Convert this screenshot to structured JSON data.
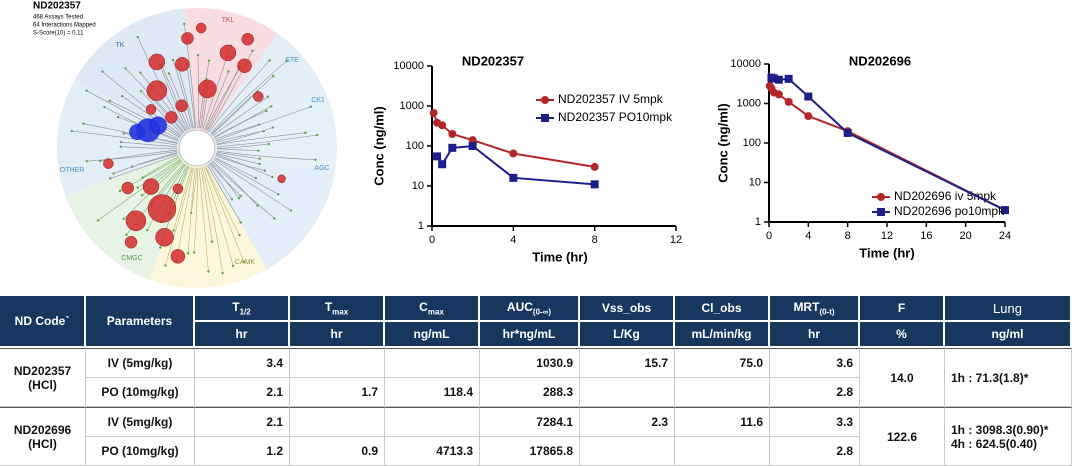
{
  "kinome": {
    "title": "ND202357",
    "stats": [
      "468 Assays Tested",
      "64 Interactions Mapped",
      "S-Score(10) = 0.11"
    ],
    "groups": [
      "TK",
      "TKL",
      "STE",
      "CK1",
      "AGC",
      "CAMK",
      "CMGC",
      "OTHER"
    ]
  },
  "chart_data": [
    {
      "type": "line",
      "title": "ND202357",
      "x_label": "Time (hr)",
      "y_label": "Conc (ng/ml)",
      "y_log": true,
      "xlim": [
        0,
        12
      ],
      "xticks": [
        0,
        4,
        8,
        12
      ],
      "ylim": [
        1,
        10000
      ],
      "yticks": [
        1,
        10,
        100,
        1000,
        10000
      ],
      "legend": "upper right",
      "series": [
        {
          "name": "ND202357 IV 5mpk",
          "color": "#b5262b",
          "marker": "circle",
          "x": [
            0.083,
            0.25,
            0.5,
            1,
            2,
            4,
            8
          ],
          "values": [
            670,
            380,
            330,
            200,
            140,
            65,
            30
          ]
        },
        {
          "name": "ND202357 PO10mpk",
          "color": "#1c1f8a",
          "marker": "square",
          "x": [
            0.25,
            0.5,
            1,
            2,
            4,
            8
          ],
          "values": [
            55,
            35,
            90,
            100,
            16,
            11
          ]
        }
      ]
    },
    {
      "type": "line",
      "title": "ND202696",
      "x_label": "Time (hr)",
      "y_label": "Conc (ng/ml)",
      "y_log": true,
      "xlim": [
        0,
        24
      ],
      "xticks": [
        0,
        4,
        8,
        12,
        16,
        20,
        24
      ],
      "ylim": [
        1,
        10000
      ],
      "yticks": [
        1,
        10,
        100,
        1000,
        10000
      ],
      "legend": "lower right",
      "series": [
        {
          "name": "ND202696 iv 5mpk",
          "color": "#b5262b",
          "marker": "circle",
          "x": [
            0.083,
            0.25,
            0.5,
            1,
            2,
            4,
            8,
            24
          ],
          "values": [
            2800,
            2400,
            1900,
            1700,
            1100,
            480,
            200,
            2
          ]
        },
        {
          "name": "ND202696 po10mpk",
          "color": "#1c1f8a",
          "marker": "square",
          "x": [
            0.25,
            0.5,
            1,
            2,
            4,
            8,
            24
          ],
          "values": [
            4500,
            4300,
            4000,
            4200,
            1500,
            180,
            2
          ]
        }
      ]
    }
  ],
  "table": {
    "headers": [
      {
        "text": "ND Code`"
      },
      {
        "text": "Parameters"
      },
      {
        "text": "T",
        "sub": "1/2"
      },
      {
        "text": "T",
        "sub": "max"
      },
      {
        "text": "C",
        "sub": "max"
      },
      {
        "text": "AUC",
        "sub": "(0-∞)"
      },
      {
        "text": "Vss_obs"
      },
      {
        "text": "Cl_obs"
      },
      {
        "text": "MRT",
        "sub": "(0-t)"
      },
      {
        "text": "F"
      },
      {
        "text": "Lung"
      }
    ],
    "units": [
      "hr",
      "hr",
      "ng/mL",
      "hr*ng/mL",
      "L/Kg",
      "mL/min/kg",
      "hr",
      "%",
      "ng/ml"
    ],
    "groups": [
      {
        "code": "ND202357",
        "salt": "(HCl)",
        "F": "14.0",
        "lung": [
          "1h : 71.3(1.8)*"
        ],
        "rows": [
          {
            "param": "IV (5mg/kg)",
            "cells": [
              "3.4",
              null,
              null,
              "1030.9",
              "15.7",
              "75.0",
              "3.6"
            ]
          },
          {
            "param": "PO (10mg/kg)",
            "cells": [
              "2.1",
              "1.7",
              "118.4",
              "288.3",
              null,
              null,
              "2.8"
            ]
          }
        ]
      },
      {
        "code": "ND202696",
        "salt": "(HCl)",
        "F": "122.6",
        "lung": [
          "1h : 3098.3(0.90)*",
          "4h : 624.5(0.40)"
        ],
        "rows": [
          {
            "param": "IV (5mg/kg)",
            "cells": [
              "2.1",
              null,
              null,
              "7284.1",
              "2.3",
              "11.6",
              "3.3"
            ]
          },
          {
            "param": "PO (10mg/kg)",
            "cells": [
              "1.2",
              "0.9",
              "4713.3",
              "17865.8",
              null,
              null,
              "2.8"
            ]
          }
        ]
      }
    ]
  }
}
